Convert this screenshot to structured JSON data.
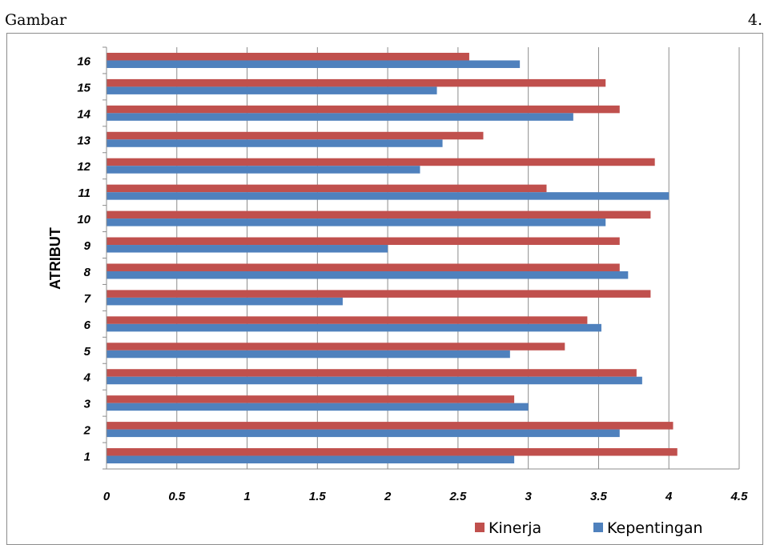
{
  "header": {
    "left_text": "Gambar",
    "right_text": "4."
  },
  "chart_data": {
    "type": "bar",
    "orientation": "horizontal",
    "categories": [
      "1",
      "2",
      "3",
      "4",
      "5",
      "6",
      "7",
      "8",
      "9",
      "10",
      "11",
      "12",
      "13",
      "14",
      "15",
      "16"
    ],
    "series": [
      {
        "name": "Kinerja",
        "color": "#c0504d",
        "values": [
          4.06,
          4.03,
          2.9,
          3.77,
          3.26,
          3.42,
          3.87,
          3.65,
          3.65,
          3.87,
          3.13,
          3.9,
          2.68,
          3.65,
          3.55,
          2.58
        ]
      },
      {
        "name": "Kepentingan",
        "color": "#4f81bd",
        "values": [
          2.9,
          3.65,
          3.0,
          3.81,
          2.87,
          3.52,
          1.68,
          3.71,
          2.0,
          3.55,
          4.0,
          2.23,
          2.39,
          3.32,
          2.35,
          2.94
        ]
      }
    ],
    "x_ticks": [
      "0",
      "0.5",
      "1",
      "1.5",
      "2",
      "2.5",
      "3",
      "3.5",
      "4",
      "4.5"
    ],
    "xlim": [
      0,
      4.5
    ],
    "ylabel": "ATRIBUT",
    "xlabel": "",
    "grid": "vertical",
    "legend_position": "bottom-right"
  }
}
